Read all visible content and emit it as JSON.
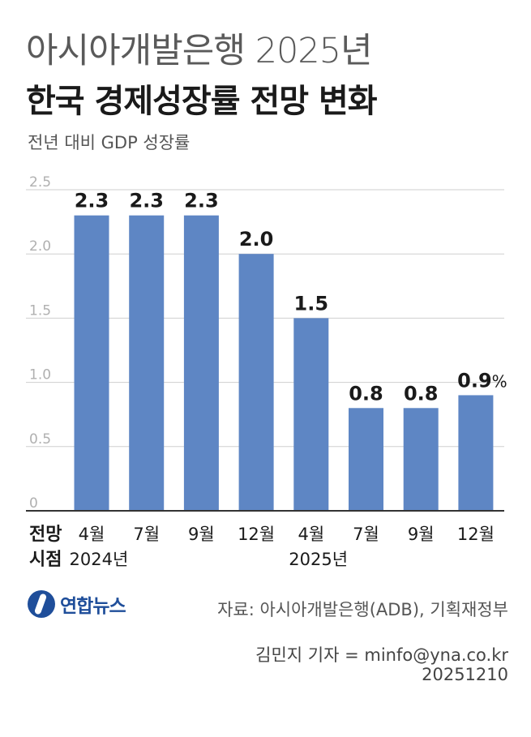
{
  "header": {
    "title_line1": "아시아개발은행 2025년",
    "title_line2": "한국 경제성장률 전망 변화",
    "subtitle": "전년 대비 GDP 성장률"
  },
  "chart_data": {
    "type": "bar",
    "title": "아시아개발은행 2025년 한국 경제성장률 전망 변화",
    "ylabel": "전년 대비 GDP 성장률",
    "xlabel": "전망 시점",
    "xlabel_lines": [
      "전망",
      "시점"
    ],
    "categories": [
      "4월",
      "7월",
      "9월",
      "12월",
      "4월",
      "7월",
      "9월",
      "12월"
    ],
    "year_groups": [
      {
        "label": "2024년",
        "start_index": 0
      },
      {
        "label": "2025년",
        "start_index": 4
      }
    ],
    "values": [
      2.3,
      2.3,
      2.3,
      2.0,
      1.5,
      0.8,
      0.8,
      0.9
    ],
    "value_labels": [
      "2.3",
      "2.3",
      "2.3",
      "2.0",
      "1.5",
      "0.8",
      "0.8",
      "0.9"
    ],
    "unit": "%",
    "ylim": [
      0,
      2.5
    ],
    "yticks": [
      "0",
      "0.5",
      "1.0",
      "1.5",
      "2.0",
      "2.5"
    ],
    "grid": true,
    "colors": {
      "bar": "#5e86c4",
      "grid": "#cfcfcf",
      "axis": "#333333"
    }
  },
  "footer": {
    "logo_text": "연합뉴스",
    "source": "자료: 아시아개발은행(ADB), 기획재정부",
    "credit": "김민지 기자 = minfo@yna.co.kr",
    "date_code": "20251210"
  }
}
